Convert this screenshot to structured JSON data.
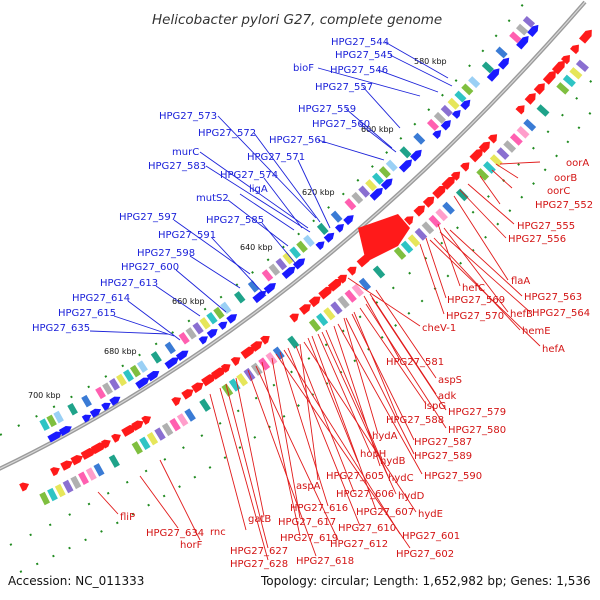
{
  "header": {
    "title": "Helicobacter pylori G27, complete genome"
  },
  "footer": {
    "accession": "Accession: NC_011333",
    "summary": "Topology: circular; Length: 1,652,982 bp; Genes: 1,536"
  },
  "scale_ticks": [
    "580 kbp",
    "600 kbp",
    "620 kbp",
    "640 kbp",
    "660 kbp",
    "680 kbp",
    "700 kbp"
  ],
  "colors": {
    "forward_strand_label": "#1c22d9",
    "reverse_strand_label": "#d31414",
    "forward_gene": "#1a1aff",
    "reverse_gene": "#ff1a1a",
    "backbone": "#8a8a8a",
    "gc_skew_dot": "#1a8a1a"
  },
  "forward_labels": [
    "HPG27_544",
    "HPG27_545",
    "HPG27_546",
    "bioF",
    "HPG27_557",
    "HPG27_559",
    "HPG27_560",
    "HPG27_561",
    "HPG27_573",
    "HPG27_572",
    "murC",
    "HPG27_583",
    "HPG27_571",
    "HPG27_574",
    "ligA",
    "mutS2",
    "HPG27_597",
    "HPG27_585",
    "HPG27_591",
    "HPG27_598",
    "HPG27_600",
    "HPG27_613",
    "HPG27_614",
    "HPG27_615",
    "HPG27_635"
  ],
  "reverse_labels": [
    "oorA",
    "oorB",
    "oorC",
    "HPG27_552",
    "HPG27_555",
    "HPG27_556",
    "flaA",
    "hefC",
    "HPG27_563",
    "HPG27_569",
    "hefB",
    "HPG27_564",
    "HPG27_570",
    "hemE",
    "hefA",
    "cheV-1",
    "HPG27_581",
    "aspS",
    "adk",
    "ispG",
    "HPG27_579",
    "HPG27_588",
    "HPG27_580",
    "hydA",
    "HPG27_587",
    "hopH",
    "HPG27_589",
    "hydB",
    "HPG27_605",
    "hydC",
    "HPG27_590",
    "aspA",
    "HPG27_606",
    "hydD",
    "HPG27_616",
    "HPG27_607",
    "hydE",
    "gatB",
    "HPG27_617",
    "HPG27_610",
    "HPG27_601",
    "rnc",
    "HPG27_619",
    "HPG27_612",
    "HPG27_627",
    "HPG27_602",
    "HPG27_628",
    "HPG27_618",
    "HPG27_634",
    "fliP",
    "horF"
  ]
}
